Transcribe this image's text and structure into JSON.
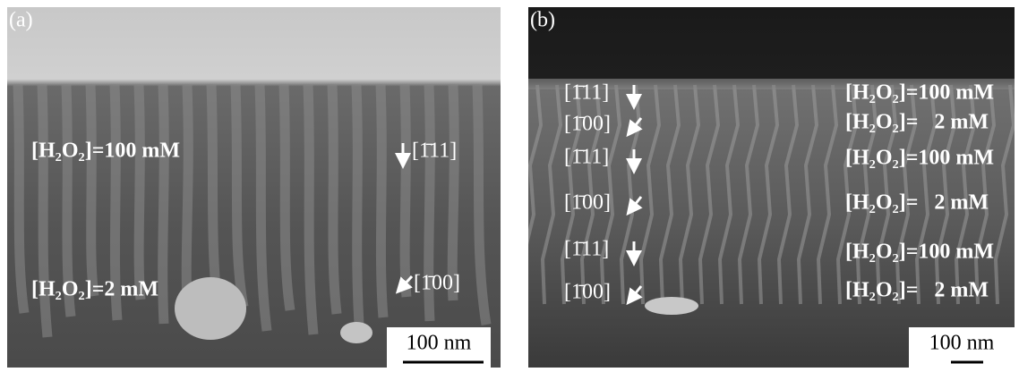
{
  "panels": [
    {
      "label": "(a)",
      "scale_bar": "100 nm",
      "annotations": [
        "[H₂O₂]=100 mM",
        "[1̄11]",
        "[H₂O₂]=2 mM",
        "[1̄00]"
      ]
    },
    {
      "label": "(b)",
      "scale_bar": "100 nm",
      "directions": [
        "[1̄11]",
        "[1̄00]",
        "[1̄11]",
        "[1̄00]",
        "[1̄11]",
        "[1̄00]"
      ],
      "concentrations": [
        "[H₂O₂]=100 mM",
        "[H₂O₂]=   2 mM",
        "[H₂O₂]=100 mM",
        "[H₂O₂]=   2 mM",
        "[H₂O₂]=100 mM",
        "[H₂O₂]=   2 mM"
      ]
    }
  ]
}
